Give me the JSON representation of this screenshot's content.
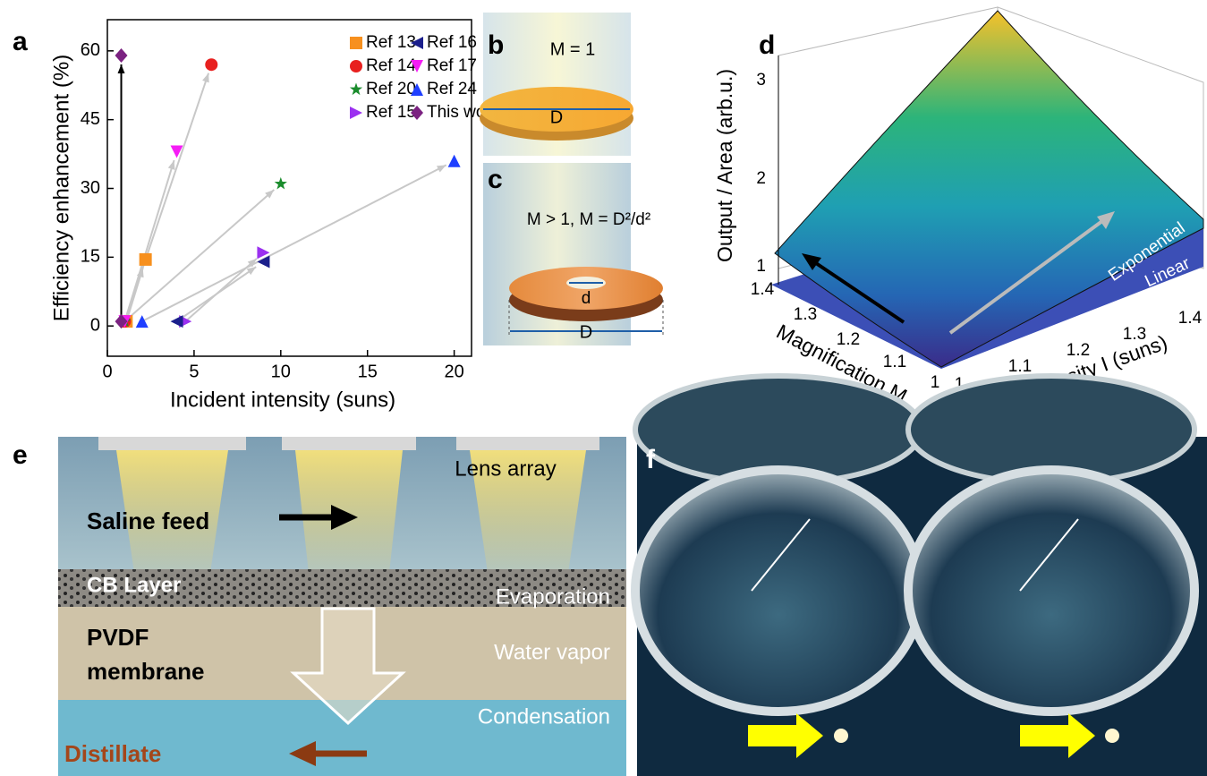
{
  "chart_data": {
    "type": "scatter",
    "panel_label": "a",
    "xlabel": "Incident intensity (suns)",
    "ylabel": "Efficiency enhancement (%)",
    "xlim": [
      0,
      21
    ],
    "ylim": [
      -6.6,
      66.8
    ],
    "xticks": [
      0,
      5,
      10,
      15,
      20
    ],
    "yticks": [
      0,
      15,
      30,
      45,
      60
    ],
    "series": [
      {
        "name": "Ref 13",
        "color": "#f7901e",
        "marker": "square",
        "arrow_color": "#c8c8c8",
        "x": [
          1.1,
          2.2
        ],
        "values": [
          1,
          14.5
        ]
      },
      {
        "name": "Ref 14",
        "color": "#e8201f",
        "marker": "circle",
        "arrow_color": "#c8c8c8",
        "x": [
          1,
          6
        ],
        "values": [
          1,
          57
        ]
      },
      {
        "name": "Ref 20",
        "color": "#1a8c2c",
        "marker": "star",
        "arrow_color": "#c8c8c8",
        "x": [
          1,
          10
        ],
        "values": [
          1,
          31
        ]
      },
      {
        "name": "Ref 15",
        "color": "#9b30f0",
        "marker": "triangle-right",
        "arrow_color": "#c8c8c8",
        "x": [
          4.5,
          9
        ],
        "values": [
          1,
          16
        ]
      },
      {
        "name": "Ref 16",
        "color": "#1b1f8c",
        "marker": "triangle-left",
        "arrow_color": "#c8c8c8",
        "x": [
          4,
          9
        ],
        "values": [
          1,
          14
        ]
      },
      {
        "name": "Ref 17",
        "color": "#f51df5",
        "marker": "triangle-down",
        "arrow_color": "#c8c8c8",
        "x": [
          1,
          4
        ],
        "values": [
          1,
          38
        ]
      },
      {
        "name": "Ref 24",
        "color": "#1f3fff",
        "marker": "triangle-up",
        "arrow_color": "#c8c8c8",
        "x": [
          2,
          20
        ],
        "values": [
          1,
          36
        ]
      },
      {
        "name": "This work",
        "color": "#7b2281",
        "marker": "diamond",
        "arrow_color": "#000000",
        "x": [
          0.8,
          0.8
        ],
        "values": [
          1,
          59
        ]
      }
    ]
  },
  "panels": {
    "b": {
      "label": "b",
      "equation": "M = 1",
      "diameter": "D"
    },
    "c": {
      "label": "c",
      "equation": "M > 1, M = D²/d²",
      "inner": "d",
      "diameter": "D"
    },
    "d": {
      "label": "d",
      "z_label": "Output / Area (arb.u.)",
      "z_ticks": [
        "1",
        "2",
        "3"
      ],
      "m_label": "Magnification M",
      "m_ticks": [
        "1",
        "1.1",
        "1.2",
        "1.3",
        "1.4"
      ],
      "i_label": "Intensity I (suns)",
      "i_ticks": [
        "1",
        "1.1",
        "1.2",
        "1.3",
        "1.4"
      ],
      "curves": [
        "Exponential",
        "Linear"
      ]
    },
    "e": {
      "label": "e",
      "lens": "Lens array",
      "feed": "Saline feed",
      "cb": "CB Layer",
      "evap": "Evaporation",
      "pvdf": [
        "PVDF",
        "membrane"
      ],
      "vapor": "Water vapor",
      "cond": "Condensation",
      "distillate": "Distillate"
    },
    "f": {
      "label": "f"
    }
  }
}
